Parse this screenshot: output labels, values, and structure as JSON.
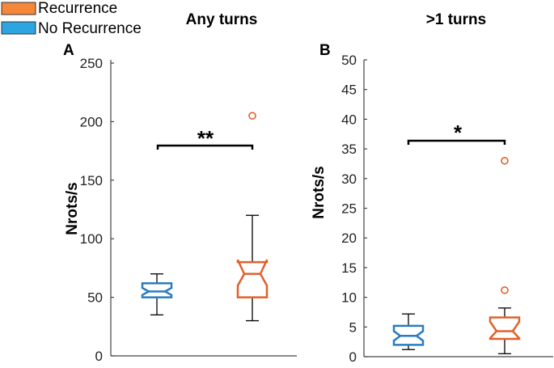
{
  "legend": [
    {
      "label": "Recurrence",
      "color": "#F4873A"
    },
    {
      "label": "No Recurrence",
      "color": "#2CA5E0"
    }
  ],
  "chart_data": [
    {
      "type": "boxplot",
      "panel": "A",
      "title": "Any turns",
      "ylabel": "Nrots/s",
      "xlabel": "",
      "ylim": [
        0,
        250
      ],
      "yticks": [
        0,
        50,
        100,
        150,
        200,
        250
      ],
      "significance": "**",
      "groups": [
        {
          "name": "No Recurrence",
          "color": "#2C7BC0",
          "whisker_low": 35,
          "q1": 50,
          "median": 55,
          "q3": 62,
          "whisker_high": 70,
          "notch_low": 52,
          "notch_high": 58,
          "outliers": []
        },
        {
          "name": "Recurrence",
          "color": "#E0612A",
          "whisker_low": 30,
          "q1": 50,
          "median": 70,
          "q3": 80,
          "whisker_high": 120,
          "notch_low": 60,
          "notch_high": 82,
          "outliers": [
            205
          ]
        }
      ]
    },
    {
      "type": "boxplot",
      "panel": "B",
      "title": ">1 turns",
      "ylabel": "Nrots/s",
      "xlabel": "",
      "ylim": [
        0,
        50
      ],
      "yticks": [
        0,
        5,
        10,
        15,
        20,
        25,
        30,
        35,
        40,
        45,
        50
      ],
      "significance": "*",
      "groups": [
        {
          "name": "No Recurrence",
          "color": "#2C7BC0",
          "whisker_low": 1.2,
          "q1": 2.0,
          "median": 3.5,
          "q3": 5.2,
          "whisker_high": 7.2,
          "notch_low": 2.7,
          "notch_high": 4.3,
          "outliers": []
        },
        {
          "name": "Recurrence",
          "color": "#E0612A",
          "whisker_low": 0.5,
          "q1": 3.0,
          "median": 4.3,
          "q3": 6.6,
          "whisker_high": 8.2,
          "notch_low": 3.1,
          "notch_high": 5.9,
          "outliers": [
            11.2,
            33.0
          ]
        }
      ]
    }
  ]
}
